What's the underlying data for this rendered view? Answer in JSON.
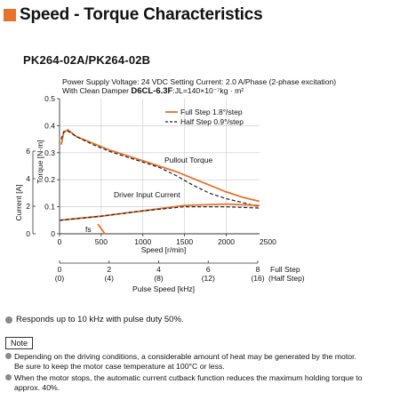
{
  "header": {
    "title": "Speed - Torque Characteristics"
  },
  "model": "PK264-02A/PK264-02B",
  "chart_data": {
    "type": "line",
    "info_line1": "Power Supply Voltage: 24 VDC  Setting Current: 2.0 A/Phase (2-phase excitation)",
    "info_line2_prefix": "With Clean Damper ",
    "info_line2_bold": "D6CL-6.3F",
    "info_line2_suffix": ":JL=140×10⁻⁷kg · m²",
    "xlabel": "Speed [r/min]",
    "xlim": [
      0,
      2400
    ],
    "x_ticks": [
      "0",
      "500",
      "1000",
      "1500",
      "2000",
      "2500"
    ],
    "ylabel_torque": "Torque [N·m]",
    "ylim_torque": [
      0,
      0.5
    ],
    "torque_ticks": [
      "0",
      "0.1",
      "0.2",
      "0.3",
      "0.4",
      "0.5"
    ],
    "ylabel_current": "Current [A]",
    "current_ticks": [
      "0",
      "2",
      "4",
      "6"
    ],
    "pulse_label": "Pulse Speed [kHz]",
    "pulse_ticks_full": [
      "0",
      "2",
      "4",
      "6",
      "8"
    ],
    "pulse_ticks_half": [
      "(0)",
      "(4)",
      "(8)",
      "(12)",
      "(16)"
    ],
    "pulse_full_label": "Full Step",
    "pulse_half_label": "(Half Step)",
    "legend": [
      {
        "name": "Full Step 1.8°/step",
        "color": "#e8722b",
        "style": "solid"
      },
      {
        "name": "Half Step 0.9°/step",
        "color": "#222222",
        "style": "dashed"
      }
    ],
    "annotations": {
      "pullout": "Pullout Torque",
      "driver_current": "Driver Input Current",
      "fs": "fs"
    },
    "series": [
      {
        "name": "Full Step 1.8°/step",
        "color": "#e8722b",
        "style": "solid",
        "x": [
          20,
          50,
          100,
          200,
          400,
          600,
          800,
          1000,
          1200,
          1400,
          1600,
          1800,
          2000,
          2200,
          2400
        ],
        "y": [
          0.33,
          0.375,
          0.385,
          0.36,
          0.335,
          0.31,
          0.29,
          0.27,
          0.25,
          0.23,
          0.205,
          0.18,
          0.155,
          0.135,
          0.12
        ]
      },
      {
        "name": "Half Step 0.9°/step",
        "color": "#222222",
        "style": "dashed",
        "x": [
          20,
          50,
          100,
          200,
          400,
          600,
          800,
          1000,
          1200,
          1400,
          1600,
          1800,
          2000,
          2200,
          2400
        ],
        "y": [
          0.35,
          0.378,
          0.38,
          0.36,
          0.33,
          0.305,
          0.285,
          0.265,
          0.245,
          0.215,
          0.18,
          0.15,
          0.13,
          0.115,
          0.1
        ]
      },
      {
        "name": "Driver Input Current (Full)",
        "color": "#e8722b",
        "style": "solid",
        "x": [
          0,
          500,
          1000,
          1500,
          2000,
          2400
        ],
        "y": [
          0.05,
          0.065,
          0.085,
          0.105,
          0.11,
          0.105
        ]
      },
      {
        "name": "Driver Input Current (Half)",
        "color": "#222222",
        "style": "dashed",
        "x": [
          0,
          500,
          1000,
          1500,
          2000,
          2400
        ],
        "y": [
          0.05,
          0.065,
          0.085,
          0.1,
          0.1,
          0.095
        ]
      }
    ]
  },
  "bullet": "Responds up to 10 kHz with pulse duty 50%.",
  "note_label": "Note",
  "notes": [
    {
      "main": "Depending on the driving conditions, a considerable amount of heat may be generated by the motor.",
      "sub": "Be sure to keep the motor case temperature at 100°C or less."
    },
    {
      "main": "When the motor stops, the automatic current cutback function reduces the maximum holding torque to",
      "sub": "approx. 40%."
    }
  ]
}
